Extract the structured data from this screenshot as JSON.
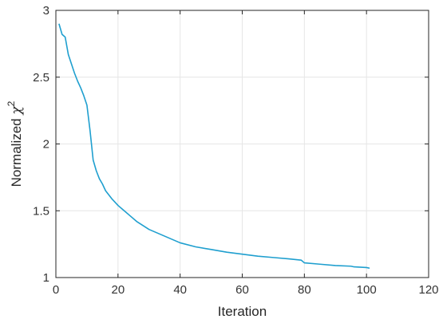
{
  "chart_data": {
    "type": "line",
    "title": "",
    "xlabel": "Iteration",
    "ylabel_prefix": "Normalized ",
    "ylabel_symbol": "χ",
    "ylabel_superscript": "2",
    "xlim": [
      0,
      120
    ],
    "ylim": [
      1,
      3
    ],
    "xticks": [
      0,
      20,
      40,
      60,
      80,
      100,
      120
    ],
    "yticks": [
      1,
      1.5,
      2,
      2.5,
      3
    ],
    "xtick_labels": [
      "0",
      "20",
      "40",
      "60",
      "80",
      "100",
      "120"
    ],
    "ytick_labels": [
      "1",
      "1.5",
      "2",
      "2.5",
      "3"
    ],
    "grid": true,
    "series": [
      {
        "color": "#1f9fcf",
        "x": [
          1,
          2,
          3,
          4,
          5,
          6,
          7,
          8,
          9,
          10,
          11,
          12,
          13,
          14,
          15,
          16,
          17,
          18,
          20,
          22,
          24,
          26,
          28,
          30,
          35,
          40,
          45,
          50,
          55,
          60,
          65,
          70,
          75,
          79,
          80,
          85,
          90,
          95,
          96,
          100,
          101
        ],
        "y": [
          2.9,
          2.82,
          2.8,
          2.67,
          2.6,
          2.53,
          2.47,
          2.42,
          2.36,
          2.29,
          2.1,
          1.88,
          1.8,
          1.74,
          1.7,
          1.65,
          1.62,
          1.59,
          1.54,
          1.5,
          1.46,
          1.42,
          1.39,
          1.36,
          1.31,
          1.26,
          1.23,
          1.21,
          1.19,
          1.175,
          1.16,
          1.15,
          1.14,
          1.13,
          1.11,
          1.1,
          1.09,
          1.085,
          1.08,
          1.075,
          1.07
        ]
      }
    ]
  }
}
